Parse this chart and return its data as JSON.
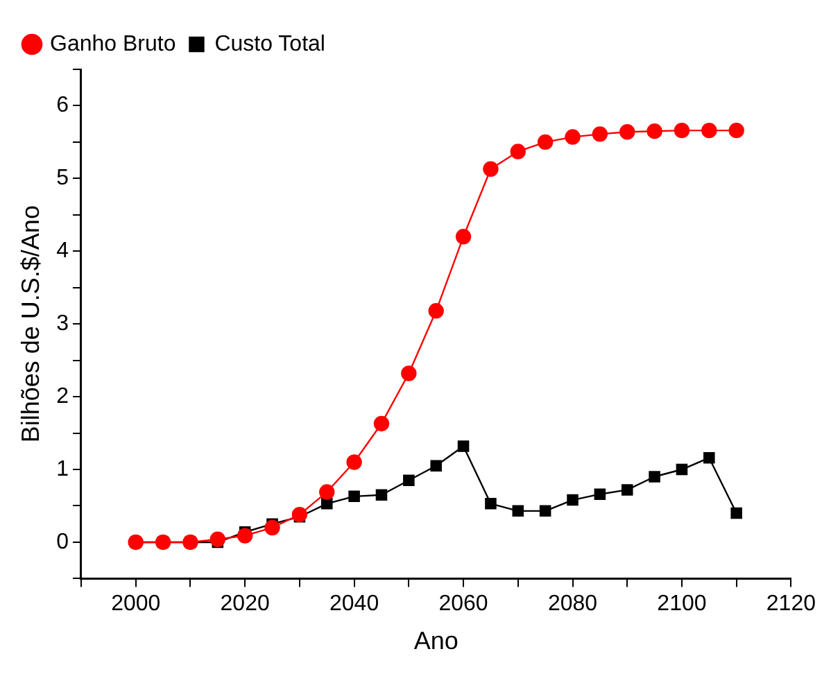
{
  "chart_data": {
    "type": "line",
    "xlabel": "Ano",
    "ylabel": "Bilhões de U.S.$/Ano",
    "x": [
      2000,
      2005,
      2010,
      2015,
      2020,
      2025,
      2030,
      2035,
      2040,
      2045,
      2050,
      2055,
      2060,
      2065,
      2070,
      2075,
      2080,
      2085,
      2090,
      2095,
      2100,
      2105,
      2110
    ],
    "series": [
      {
        "name": "Custo Total",
        "color": "#000000",
        "marker": "square",
        "values": [
          0,
          0,
          0,
          0,
          0.14,
          0.25,
          0.35,
          0.53,
          0.63,
          0.65,
          0.85,
          1.05,
          1.32,
          0.53,
          0.43,
          0.43,
          0.58,
          0.66,
          0.72,
          0.9,
          1.0,
          1.16,
          0.4
        ]
      },
      {
        "name": "Ganho Bruto",
        "color": "#ff0000",
        "marker": "circle",
        "values": [
          0,
          0,
          0,
          0.04,
          0.09,
          0.2,
          0.38,
          0.69,
          1.1,
          1.63,
          2.32,
          3.18,
          4.2,
          5.13,
          5.37,
          5.5,
          5.57,
          5.61,
          5.64,
          5.65,
          5.66,
          5.66,
          5.66
        ]
      }
    ],
    "xlim": [
      1990,
      2120
    ],
    "xticks": [
      {
        "value": 1990,
        "label": null
      },
      2000,
      {
        "value": 2010,
        "label": null
      },
      2020,
      {
        "value": 2030,
        "label": null
      },
      2040,
      {
        "value": 2050,
        "label": null
      },
      2060,
      {
        "value": 2070,
        "label": null
      },
      2080,
      {
        "value": 2090,
        "label": null
      },
      2100,
      {
        "value": 2110,
        "label": null
      },
      2120
    ],
    "ylim": [
      -0.5,
      6.5
    ],
    "yticks": [
      {
        "value": -0.5,
        "label": null
      },
      0,
      {
        "value": 0.5,
        "label": null
      },
      1,
      {
        "value": 1.5,
        "label": null
      },
      2,
      {
        "value": 2.5,
        "label": null
      },
      3,
      {
        "value": 3.5,
        "label": null
      },
      4,
      {
        "value": 4.5,
        "label": null
      },
      5,
      {
        "value": 5.5,
        "label": null
      },
      6,
      {
        "value": 6.5,
        "label": null
      }
    ],
    "grid": false,
    "legend": "top left"
  }
}
